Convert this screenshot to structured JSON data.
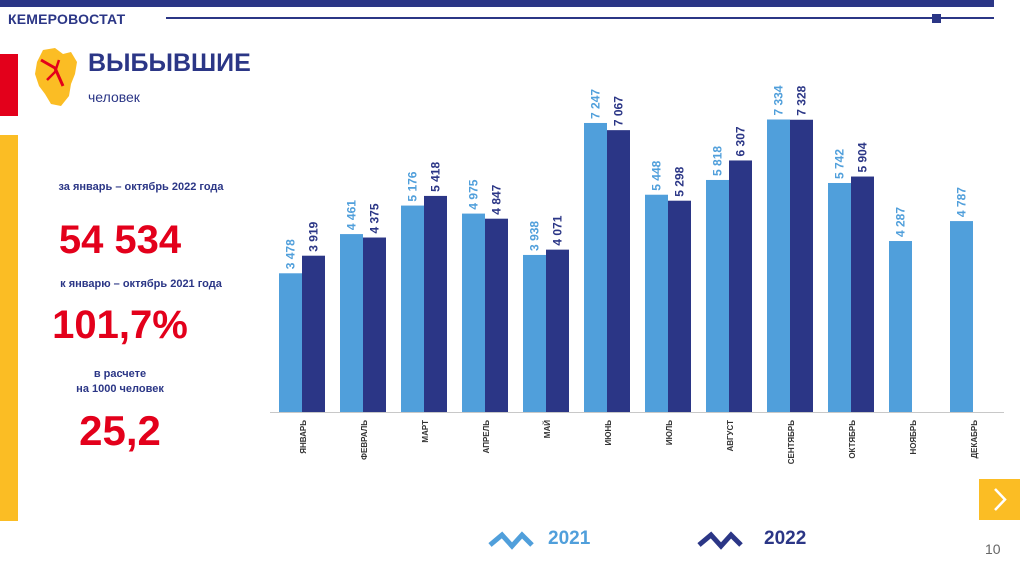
{
  "header": {
    "brand": "КЕМЕРОВОСТАТ"
  },
  "title": "ВЫБЫВШИЕ",
  "subtitle": "человек",
  "stats": {
    "period_label": "за январь – октябрь 2022 года",
    "total_value": "54 534",
    "compare_label": "к январю – октябрь 2021 года",
    "percent_value": "101,7%",
    "per1000_label_line1": "в расчете",
    "per1000_label_line2": "на 1000 человек",
    "per1000_value": "25,2"
  },
  "colors": {
    "series_2021": "#509fdb",
    "series_2022": "#2b3686",
    "accent_red": "#e3001b",
    "accent_yellow": "#fbbd24"
  },
  "chart_data": {
    "type": "bar",
    "categories": [
      "ЯНВАРЬ",
      "ФЕВРАЛЬ",
      "МАРТ",
      "АПРЕЛЬ",
      "МАЙ",
      "ИЮНЬ",
      "ИЮЛЬ",
      "АВГУСТ",
      "СЕНТЯБРЬ",
      "ОКТЯБРЬ",
      "НОЯБРЬ",
      "ДЕКАБРЬ"
    ],
    "series": [
      {
        "name": "2021",
        "values": [
          3478,
          4461,
          5176,
          4975,
          3938,
          7247,
          5448,
          5818,
          7334,
          5742,
          4287,
          4787
        ],
        "labels": [
          "3 478",
          "4 461",
          "5 176",
          "4 975",
          "3 938",
          "7 247",
          "5 448",
          "5 818",
          "7 334",
          "5 742",
          "4 287",
          "4 787"
        ]
      },
      {
        "name": "2022",
        "values": [
          3919,
          4375,
          5418,
          4847,
          4071,
          7067,
          5298,
          6307,
          7328,
          5904,
          null,
          null
        ],
        "labels": [
          "3 919",
          "4 375",
          "5 418",
          "4 847",
          "4 071",
          "7 067",
          "5 298",
          "6 307",
          "7 328",
          "5 904",
          "",
          ""
        ]
      }
    ],
    "ylim": [
      0,
      8500
    ],
    "grid": false,
    "legend": "bottom"
  },
  "footer": {
    "page_number": "10"
  }
}
